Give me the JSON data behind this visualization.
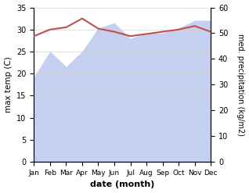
{
  "months": [
    "Jan",
    "Feb",
    "Mar",
    "Apr",
    "May",
    "Jun",
    "Jul",
    "Aug",
    "Sep",
    "Oct",
    "Nov",
    "Dec"
  ],
  "x": [
    0,
    1,
    2,
    3,
    4,
    5,
    6,
    7,
    8,
    9,
    10,
    11
  ],
  "temp_max": [
    28.5,
    30.0,
    30.5,
    32.5,
    30.2,
    29.5,
    28.5,
    29.0,
    29.5,
    30.0,
    30.8,
    29.5
  ],
  "precipitation": [
    33,
    43,
    37,
    43,
    52,
    54,
    48,
    50,
    50,
    52,
    55,
    55
  ],
  "temp_color": "#c0504d",
  "precip_fill_color": "#c5cff0",
  "precip_line_color": "#aabbee",
  "ylabel_left": "max temp (C)",
  "ylabel_right": "med. precipitation (kg/m2)",
  "xlabel": "date (month)",
  "ylim_left": [
    0,
    35
  ],
  "ylim_right": [
    0,
    60
  ],
  "yticks_left": [
    0,
    5,
    10,
    15,
    20,
    25,
    30,
    35
  ],
  "yticks_right": [
    0,
    10,
    20,
    30,
    40,
    50,
    60
  ],
  "background_color": "#ffffff"
}
